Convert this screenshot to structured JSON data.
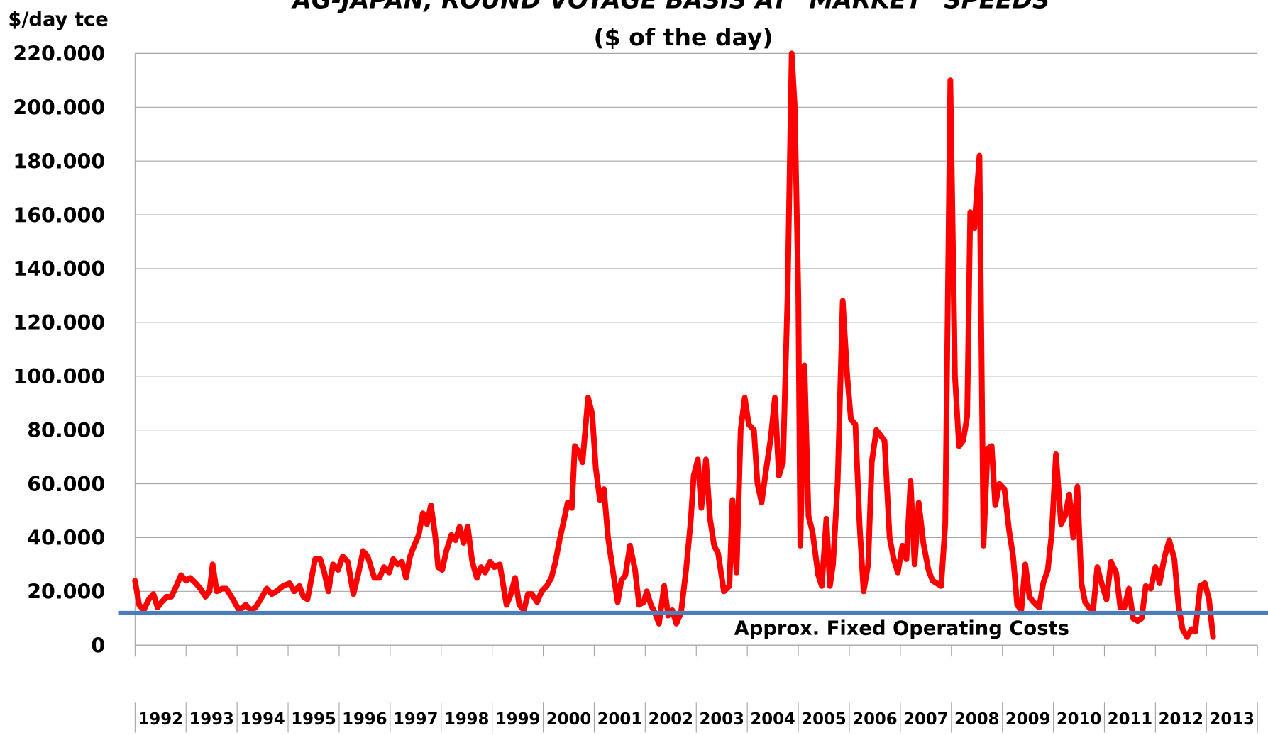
{
  "chart_data": {
    "type": "line",
    "title": "AG-JAPAN, ROUND VOYAGE BASIS AT \"MARKET\" SPEEDS",
    "subtitle": "($ of the day)",
    "y_label": "$/day tce",
    "xlim": [
      1992,
      2014
    ],
    "xticks": [
      1992,
      1993,
      1994,
      1995,
      1996,
      1997,
      1998,
      1999,
      2000,
      2001,
      2002,
      2003,
      2004,
      2005,
      2006,
      2007,
      2008,
      2009,
      2010,
      2011,
      2012,
      2013,
      2014
    ],
    "x_labels": [
      "1992",
      "1993",
      "1994",
      "1995",
      "1996",
      "1997",
      "1998",
      "1999",
      "2000",
      "2001",
      "2002",
      "2003",
      "2004",
      "2005",
      "2006",
      "2007",
      "2008",
      "2009",
      "2010",
      "2011",
      "2012",
      "2013"
    ],
    "ylim": [
      0,
      220000
    ],
    "yticks": [
      0,
      {
        "value": 20000,
        "label": "20.000"
      },
      {
        "value": 40000,
        "label": "40.000"
      },
      {
        "value": 60000,
        "label": "60.000"
      },
      {
        "value": 80000,
        "label": "80.000"
      },
      {
        "value": 100000,
        "label": "100.000"
      },
      {
        "value": 120000,
        "label": "120.000"
      },
      {
        "value": 140000,
        "label": "140.000"
      },
      {
        "value": 160000,
        "label": "160.000"
      },
      {
        "value": 180000,
        "label": "180.000"
      },
      {
        "value": 200000,
        "label": "200.000"
      },
      {
        "value": 220000,
        "label": "220.000"
      }
    ],
    "grid": true,
    "reference_line": {
      "label": "Approx. Fixed Operating Costs",
      "value": 12000,
      "color": "#4a7ebb"
    },
    "x": [
      1992.0,
      1992.08,
      1992.17,
      1992.27,
      1992.36,
      1992.44,
      1992.52,
      1992.62,
      1992.71,
      1992.81,
      1992.9,
      1993.0,
      1993.08,
      1993.19,
      1993.28,
      1993.38,
      1993.46,
      1993.52,
      1993.6,
      1993.7,
      1993.79,
      1993.89,
      1993.98,
      1994.04,
      1994.17,
      1994.27,
      1994.36,
      1994.46,
      1994.58,
      1994.68,
      1994.77,
      1994.9,
      1995.03,
      1995.12,
      1995.22,
      1995.3,
      1995.38,
      1995.47,
      1995.53,
      1995.63,
      1995.71,
      1995.79,
      1995.88,
      1995.98,
      1996.07,
      1996.17,
      1996.28,
      1996.37,
      1996.47,
      1996.56,
      1996.69,
      1996.79,
      1996.88,
      1996.98,
      1997.06,
      1997.15,
      1997.23,
      1997.31,
      1997.39,
      1997.47,
      1997.56,
      1997.64,
      1997.72,
      1997.8,
      1997.88,
      1997.94,
      1998.02,
      1998.1,
      1998.2,
      1998.28,
      1998.36,
      1998.44,
      1998.52,
      1998.61,
      1998.7,
      1998.78,
      1998.86,
      1998.96,
      1999.04,
      1999.15,
      1999.28,
      1999.35,
      1999.45,
      1999.53,
      1999.62,
      1999.7,
      1999.78,
      1999.88,
      1999.97,
      2000.07,
      2000.16,
      2000.24,
      2000.32,
      2000.4,
      2000.48,
      2000.56,
      2000.62,
      2000.69,
      2000.77,
      2000.88,
      2000.96,
      2001.03,
      2001.11,
      2001.19,
      2001.27,
      2001.37,
      2001.46,
      2001.53,
      2001.61,
      2001.7,
      2001.8,
      2001.88,
      2001.97,
      2002.03,
      2002.11,
      2002.19,
      2002.27,
      2002.37,
      2002.45,
      2002.53,
      2002.61,
      2002.7,
      2002.8,
      2002.89,
      2002.95,
      2003.03,
      2003.1,
      2003.19,
      2003.27,
      2003.35,
      2003.43,
      2003.54,
      2003.65,
      2003.71,
      2003.79,
      2003.87,
      2003.95,
      2004.03,
      2004.13,
      2004.2,
      2004.28,
      2004.36,
      2004.46,
      2004.54,
      2004.62,
      2004.7,
      2004.79,
      2004.87,
      2004.93,
      2005.0,
      2005.04,
      2005.12,
      2005.2,
      2005.28,
      2005.39,
      2005.46,
      2005.55,
      2005.62,
      2005.68,
      2005.77,
      2005.87,
      2005.96,
      2006.03,
      2006.12,
      2006.2,
      2006.28,
      2006.37,
      2006.44,
      2006.53,
      2006.61,
      2006.69,
      2006.79,
      2006.87,
      2006.95,
      2007.04,
      2007.12,
      2007.2,
      2007.28,
      2007.36,
      2007.45,
      2007.55,
      2007.63,
      2007.71,
      2007.8,
      2007.88,
      2007.98,
      2008.07,
      2008.15,
      2008.23,
      2008.31,
      2008.37,
      2008.45,
      2008.55,
      2008.63,
      2008.71,
      2008.79,
      2008.86,
      2008.94,
      2009.04,
      2009.13,
      2009.21,
      2009.29,
      2009.37,
      2009.45,
      2009.53,
      2009.61,
      2009.72,
      2009.8,
      2009.89,
      2009.97,
      2010.05,
      2010.15,
      2010.23,
      2010.31,
      2010.39,
      2010.47,
      2010.55,
      2010.62,
      2010.7,
      2010.78,
      2010.86,
      2010.96,
      2011.04,
      2011.13,
      2011.23,
      2011.31,
      2011.39,
      2011.48,
      2011.56,
      2011.65,
      2011.73,
      2011.81,
      2011.91,
      2012.0,
      2012.08,
      2012.18,
      2012.27,
      2012.37,
      2012.45,
      2012.53,
      2012.62,
      2012.71,
      2012.78,
      2012.88,
      2012.97,
      2013.05,
      2013.13
    ],
    "series": [
      {
        "color": "#ff0000",
        "values": [
          24000,
          15000,
          13000,
          17000,
          19000,
          14000,
          16000,
          18000,
          18000,
          22000,
          26000,
          24000,
          25000,
          23000,
          21000,
          18000,
          20000,
          30000,
          20000,
          21000,
          21000,
          18000,
          15000,
          13000,
          15000,
          13000,
          14000,
          17000,
          21000,
          19000,
          20000,
          22000,
          23000,
          20000,
          22000,
          18000,
          17000,
          26000,
          32000,
          32000,
          27000,
          20000,
          30000,
          28000,
          33000,
          31000,
          19000,
          26000,
          35000,
          33000,
          25000,
          25000,
          29000,
          27000,
          32000,
          30000,
          31000,
          25000,
          33000,
          37000,
          41000,
          49000,
          45000,
          52000,
          41000,
          29000,
          28000,
          35000,
          41000,
          39000,
          44000,
          38000,
          44000,
          31000,
          25000,
          29000,
          27000,
          31000,
          29000,
          30000,
          15000,
          18000,
          25000,
          15000,
          13000,
          19000,
          19000,
          16000,
          20000,
          22000,
          25000,
          31000,
          39000,
          46000,
          53000,
          51000,
          74000,
          72000,
          68000,
          92000,
          86000,
          66000,
          54000,
          58000,
          40000,
          27000,
          16000,
          24000,
          26000,
          37000,
          28000,
          15000,
          16000,
          20000,
          15000,
          12000,
          8000,
          22000,
          11000,
          13000,
          8000,
          12000,
          28000,
          46000,
          63000,
          69000,
          51000,
          69000,
          47000,
          37000,
          34000,
          20000,
          22000,
          54000,
          27000,
          80000,
          92000,
          82000,
          80000,
          60000,
          53000,
          64000,
          77000,
          92000,
          63000,
          68000,
          130000,
          220000,
          200000,
          130000,
          37000,
          104000,
          48000,
          42000,
          26000,
          22000,
          47000,
          22000,
          30000,
          60000,
          128000,
          100000,
          84000,
          82000,
          45000,
          20000,
          30000,
          68000,
          80000,
          78000,
          76000,
          40000,
          32000,
          27000,
          37000,
          32000,
          61000,
          30000,
          53000,
          38000,
          28000,
          24000,
          23000,
          22000,
          45000,
          210000,
          100000,
          74000,
          76000,
          85000,
          161000,
          155000,
          182000,
          37000,
          73000,
          74000,
          52000,
          60000,
          58000,
          43000,
          33000,
          15000,
          13000,
          30000,
          18000,
          16000,
          14000,
          23000,
          28000,
          42000,
          71000,
          45000,
          48000,
          56000,
          40000,
          59000,
          23000,
          16000,
          14000,
          13000,
          29000,
          22000,
          17000,
          31000,
          27000,
          14000,
          14000,
          21000,
          10000,
          9000,
          10000,
          22000,
          21000,
          29000,
          23000,
          33000,
          39000,
          32000,
          15000,
          6000,
          3000,
          6000,
          5000,
          22000,
          23000,
          17000,
          3000
        ]
      }
    ]
  }
}
